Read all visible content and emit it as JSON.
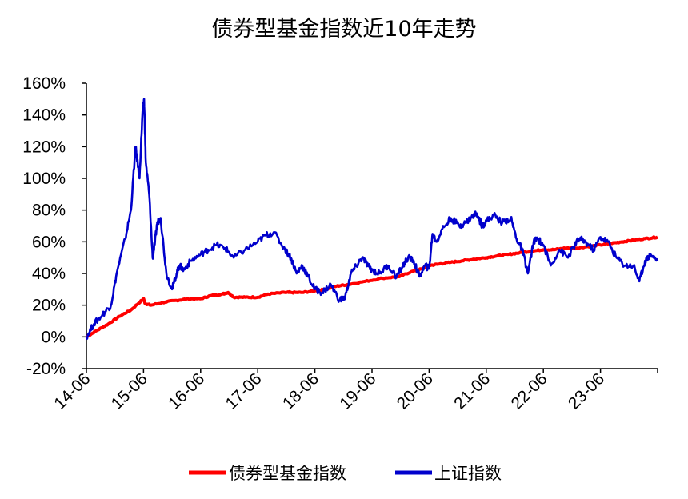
{
  "chart_data": {
    "type": "line",
    "title": "债券型基金指数近10年走势",
    "xlabel": "",
    "ylabel": "",
    "ylim": [
      -20,
      160
    ],
    "yticks": [
      "-20%",
      "0%",
      "20%",
      "40%",
      "60%",
      "80%",
      "100%",
      "120%",
      "140%",
      "160%"
    ],
    "ytick_values": [
      -20,
      0,
      20,
      40,
      60,
      80,
      100,
      120,
      140,
      160
    ],
    "xticks": [
      "14-06",
      "15-06",
      "16-06",
      "17-06",
      "18-06",
      "19-06",
      "20-06",
      "21-06",
      "22-06",
      "23-06"
    ],
    "xtick_values": [
      2014.42,
      2015.42,
      2016.42,
      2017.42,
      2018.42,
      2019.42,
      2020.42,
      2021.42,
      2022.42,
      2023.42
    ],
    "xlim": [
      2014.42,
      2024.42
    ],
    "grid": false,
    "legend_position": "bottom",
    "series": [
      {
        "name": "债券型基金指数",
        "color": "#ff0000",
        "x": [
          2014.42,
          2014.6,
          2014.8,
          2015.0,
          2015.2,
          2015.42,
          2015.45,
          2015.55,
          2015.8,
          2016.0,
          2016.2,
          2016.42,
          2016.6,
          2016.8,
          2016.9,
          2017.0,
          2017.2,
          2017.42,
          2017.6,
          2017.9,
          2018.0,
          2018.2,
          2018.42,
          2018.6,
          2018.8,
          2019.0,
          2019.3,
          2019.6,
          2019.9,
          2020.1,
          2020.3,
          2020.42,
          2020.6,
          2020.8,
          2021.0,
          2021.2,
          2021.42,
          2021.6,
          2021.8,
          2022.0,
          2022.2,
          2022.42,
          2022.6,
          2022.8,
          2022.9,
          2023.0,
          2023.2,
          2023.42,
          2023.6,
          2023.8,
          2024.0,
          2024.2,
          2024.42
        ],
        "values": [
          0,
          4,
          8,
          13,
          17,
          24,
          21,
          20,
          22,
          23,
          24,
          24,
          26,
          27,
          28,
          25,
          25,
          25,
          27,
          28,
          28,
          28,
          29,
          30,
          32,
          33,
          35,
          37,
          38,
          41,
          43,
          45,
          46,
          47,
          48,
          49,
          50,
          51,
          52,
          53,
          54,
          55,
          55,
          56,
          56,
          56,
          57,
          58,
          59,
          60,
          61,
          62,
          63
        ]
      },
      {
        "name": "上证指数",
        "color": "#0000cc",
        "x": [
          2014.42,
          2014.55,
          2014.7,
          2014.85,
          2014.95,
          2015.1,
          2015.2,
          2015.28,
          2015.35,
          2015.4,
          2015.43,
          2015.46,
          2015.52,
          2015.58,
          2015.62,
          2015.66,
          2015.72,
          2015.82,
          2015.92,
          2016.0,
          2016.05,
          2016.12,
          2016.25,
          2016.42,
          2016.55,
          2016.7,
          2016.85,
          2017.0,
          2017.2,
          2017.42,
          2017.55,
          2017.7,
          2017.9,
          2018.0,
          2018.1,
          2018.2,
          2018.3,
          2018.42,
          2018.55,
          2018.7,
          2018.85,
          2018.95,
          2019.05,
          2019.15,
          2019.25,
          2019.35,
          2019.42,
          2019.55,
          2019.7,
          2019.85,
          2019.95,
          2020.05,
          2020.15,
          2020.25,
          2020.35,
          2020.42,
          2020.48,
          2020.55,
          2020.65,
          2020.8,
          2020.95,
          2021.05,
          2021.15,
          2021.25,
          2021.35,
          2021.42,
          2021.55,
          2021.7,
          2021.85,
          2021.95,
          2022.05,
          2022.15,
          2022.25,
          2022.32,
          2022.42,
          2022.55,
          2022.7,
          2022.85,
          2022.95,
          2023.05,
          2023.15,
          2023.3,
          2023.42,
          2023.55,
          2023.7,
          2023.85,
          2024.0,
          2024.1,
          2024.2,
          2024.3,
          2024.42
        ],
        "values": [
          0,
          8,
          14,
          20,
          40,
          62,
          80,
          120,
          100,
          140,
          150,
          110,
          90,
          50,
          60,
          72,
          75,
          40,
          30,
          40,
          45,
          42,
          48,
          52,
          55,
          58,
          56,
          50,
          55,
          60,
          64,
          66,
          55,
          50,
          40,
          45,
          38,
          30,
          28,
          33,
          23,
          25,
          40,
          45,
          50,
          45,
          42,
          40,
          45,
          38,
          44,
          50,
          48,
          38,
          45,
          43,
          65,
          60,
          68,
          75,
          70,
          72,
          75,
          78,
          70,
          73,
          77,
          72,
          75,
          62,
          55,
          40,
          60,
          62,
          58,
          45,
          55,
          50,
          57,
          62,
          60,
          55,
          63,
          60,
          50,
          45,
          45,
          35,
          48,
          52,
          48
        ]
      }
    ]
  }
}
